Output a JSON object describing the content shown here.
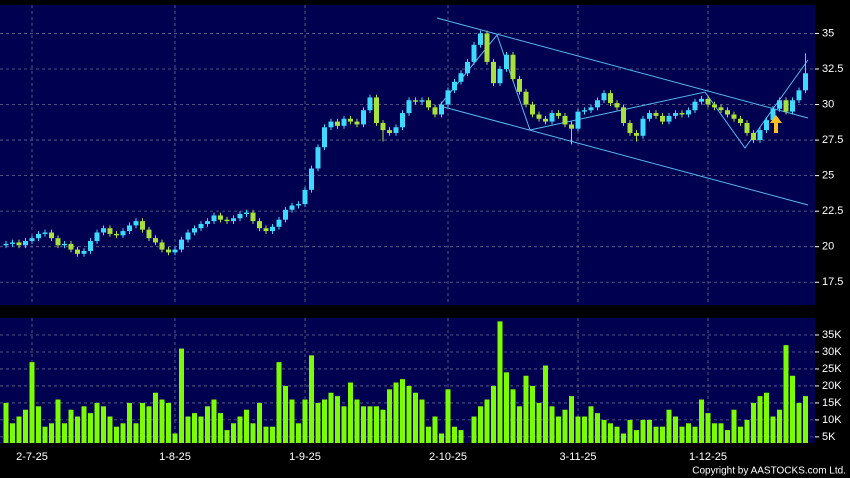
{
  "chart_data": [
    {
      "type": "candlestick",
      "up_color": "#3fd8ff",
      "down_color": "#a8e03c",
      "ylim": [
        15.9,
        37.0
      ],
      "yticks": [
        17.5,
        20,
        22.5,
        25,
        27.5,
        30,
        32.5,
        35
      ],
      "grid": true,
      "ohlc": [
        [
          20.1,
          20.4,
          19.9,
          20.2
        ],
        [
          20.2,
          20.5,
          20.0,
          20.3
        ],
        [
          20.3,
          20.5,
          19.9,
          20.1
        ],
        [
          20.1,
          20.6,
          19.9,
          20.4
        ],
        [
          20.4,
          20.8,
          20.2,
          20.6
        ],
        [
          20.6,
          21.1,
          20.4,
          20.9
        ],
        [
          20.9,
          21.2,
          20.7,
          21.0
        ],
        [
          21.0,
          21.2,
          20.4,
          20.6
        ],
        [
          20.6,
          20.8,
          19.9,
          20.1
        ],
        [
          20.1,
          20.4,
          19.9,
          20.2
        ],
        [
          20.2,
          20.4,
          19.6,
          19.8
        ],
        [
          19.8,
          20.0,
          19.3,
          19.5
        ],
        [
          19.5,
          19.9,
          19.3,
          19.7
        ],
        [
          19.7,
          20.6,
          19.5,
          20.4
        ],
        [
          20.4,
          21.2,
          20.2,
          21.0
        ],
        [
          21.0,
          21.5,
          20.8,
          21.3
        ],
        [
          21.3,
          21.5,
          20.7,
          20.9
        ],
        [
          20.9,
          21.1,
          20.6,
          20.8
        ],
        [
          20.8,
          21.3,
          20.6,
          21.1
        ],
        [
          21.1,
          21.7,
          20.9,
          21.5
        ],
        [
          21.5,
          22.0,
          21.3,
          21.8
        ],
        [
          21.8,
          22.0,
          21.0,
          21.2
        ],
        [
          21.2,
          21.4,
          20.4,
          20.6
        ],
        [
          20.6,
          20.8,
          20.1,
          20.3
        ],
        [
          20.3,
          20.5,
          19.6,
          19.8
        ],
        [
          19.8,
          20.0,
          19.4,
          19.6
        ],
        [
          19.6,
          20.0,
          19.4,
          19.8
        ],
        [
          19.8,
          20.7,
          19.6,
          20.5
        ],
        [
          20.5,
          21.2,
          20.3,
          21.0
        ],
        [
          21.0,
          21.5,
          20.8,
          21.3
        ],
        [
          21.3,
          21.8,
          21.1,
          21.6
        ],
        [
          21.6,
          22.0,
          21.4,
          21.8
        ],
        [
          21.8,
          22.4,
          21.6,
          22.2
        ],
        [
          22.2,
          22.4,
          21.7,
          21.9
        ],
        [
          21.9,
          22.1,
          21.6,
          21.8
        ],
        [
          21.8,
          22.2,
          21.6,
          22.0
        ],
        [
          22.0,
          22.5,
          21.8,
          22.3
        ],
        [
          22.3,
          22.6,
          22.1,
          22.4
        ],
        [
          22.4,
          22.6,
          21.6,
          21.8
        ],
        [
          21.8,
          22.0,
          21.1,
          21.3
        ],
        [
          21.3,
          21.5,
          20.9,
          21.1
        ],
        [
          21.1,
          21.6,
          20.9,
          21.4
        ],
        [
          21.4,
          22.1,
          21.2,
          21.9
        ],
        [
          21.9,
          22.8,
          21.7,
          22.6
        ],
        [
          22.6,
          23.1,
          22.4,
          22.9
        ],
        [
          22.9,
          23.2,
          22.7,
          23.0
        ],
        [
          23.0,
          24.2,
          22.8,
          24.0
        ],
        [
          24.0,
          25.7,
          23.8,
          25.5
        ],
        [
          25.5,
          27.2,
          25.3,
          27.0
        ],
        [
          27.0,
          28.6,
          26.8,
          28.4
        ],
        [
          28.4,
          29.0,
          28.2,
          28.8
        ],
        [
          28.8,
          29.0,
          28.3,
          28.5
        ],
        [
          28.5,
          29.2,
          28.3,
          29.0
        ],
        [
          29.0,
          29.2,
          28.6,
          28.8
        ],
        [
          28.8,
          29.0,
          28.4,
          28.6
        ],
        [
          28.6,
          29.8,
          28.4,
          29.6
        ],
        [
          29.6,
          30.7,
          29.4,
          30.5
        ],
        [
          30.5,
          30.7,
          28.5,
          28.7
        ],
        [
          28.7,
          28.9,
          27.4,
          28.2
        ],
        [
          28.2,
          28.4,
          27.8,
          28.0
        ],
        [
          28.0,
          28.6,
          27.8,
          28.4
        ],
        [
          28.4,
          29.6,
          28.2,
          29.4
        ],
        [
          29.4,
          30.5,
          29.2,
          30.3
        ],
        [
          30.3,
          30.5,
          30.0,
          30.2
        ],
        [
          30.2,
          30.5,
          30.0,
          30.3
        ],
        [
          30.3,
          30.5,
          29.6,
          29.8
        ],
        [
          29.8,
          30.0,
          29.1,
          29.3
        ],
        [
          29.3,
          30.2,
          29.1,
          30.0
        ],
        [
          30.0,
          31.2,
          29.8,
          31.0
        ],
        [
          31.0,
          31.8,
          30.8,
          31.6
        ],
        [
          31.6,
          32.4,
          31.4,
          32.2
        ],
        [
          32.2,
          33.2,
          32.0,
          33.0
        ],
        [
          33.0,
          34.4,
          32.8,
          34.2
        ],
        [
          34.2,
          35.2,
          34.0,
          35.0
        ],
        [
          35.0,
          35.2,
          32.8,
          33.0
        ],
        [
          33.0,
          33.2,
          31.3,
          31.5
        ],
        [
          31.5,
          32.7,
          31.3,
          32.5
        ],
        [
          32.5,
          33.7,
          32.3,
          33.5
        ],
        [
          33.5,
          33.7,
          31.6,
          31.8
        ],
        [
          31.8,
          32.0,
          30.7,
          30.9
        ],
        [
          30.9,
          31.1,
          29.8,
          30.0
        ],
        [
          30.0,
          30.2,
          29.1,
          29.3
        ],
        [
          29.3,
          29.5,
          28.8,
          29.0
        ],
        [
          29.0,
          29.2,
          28.6,
          28.8
        ],
        [
          28.8,
          29.6,
          28.6,
          29.4
        ],
        [
          29.4,
          29.6,
          29.0,
          29.2
        ],
        [
          29.2,
          29.4,
          28.4,
          28.6
        ],
        [
          28.6,
          28.8,
          27.2,
          28.3
        ],
        [
          28.3,
          29.7,
          28.1,
          29.5
        ],
        [
          29.5,
          29.8,
          29.3,
          29.6
        ],
        [
          29.6,
          30.0,
          29.4,
          29.8
        ],
        [
          29.8,
          30.5,
          29.6,
          30.3
        ],
        [
          30.3,
          31.0,
          30.1,
          30.8
        ],
        [
          30.8,
          31.0,
          29.9,
          30.1
        ],
        [
          30.1,
          30.3,
          29.6,
          29.8
        ],
        [
          29.8,
          30.0,
          28.5,
          28.7
        ],
        [
          28.7,
          28.9,
          27.8,
          28.0
        ],
        [
          28.0,
          28.2,
          27.4,
          27.8
        ],
        [
          27.8,
          29.2,
          27.6,
          29.0
        ],
        [
          29.0,
          29.6,
          28.8,
          29.4
        ],
        [
          29.4,
          29.6,
          29.0,
          29.2
        ],
        [
          29.2,
          29.4,
          28.6,
          28.8
        ],
        [
          28.8,
          29.4,
          28.6,
          29.2
        ],
        [
          29.2,
          29.6,
          29.0,
          29.4
        ],
        [
          29.4,
          29.6,
          29.1,
          29.3
        ],
        [
          29.3,
          29.8,
          29.1,
          29.6
        ],
        [
          29.6,
          30.4,
          29.4,
          30.2
        ],
        [
          30.2,
          30.6,
          30.0,
          30.4
        ],
        [
          30.4,
          30.6,
          29.8,
          30.0
        ],
        [
          30.0,
          30.2,
          29.6,
          29.8
        ],
        [
          29.8,
          30.0,
          29.4,
          29.6
        ],
        [
          29.6,
          29.8,
          29.1,
          29.3
        ],
        [
          29.3,
          29.5,
          28.8,
          29.0
        ],
        [
          29.0,
          29.2,
          28.5,
          28.7
        ],
        [
          28.7,
          28.9,
          27.8,
          28.0
        ],
        [
          28.0,
          28.2,
          27.3,
          27.5
        ],
        [
          27.5,
          28.4,
          27.3,
          28.2
        ],
        [
          28.2,
          29.1,
          28.0,
          28.9
        ],
        [
          28.9,
          29.9,
          28.7,
          29.7
        ],
        [
          29.7,
          30.5,
          29.5,
          30.3
        ],
        [
          30.3,
          30.5,
          29.3,
          29.5
        ],
        [
          29.5,
          30.5,
          29.3,
          30.3
        ],
        [
          30.3,
          31.2,
          30.1,
          31.0
        ],
        [
          31.0,
          33.6,
          30.8,
          32.2
        ]
      ]
    },
    {
      "type": "bar",
      "color": "#7cfc00",
      "ylim": [
        3200,
        40000
      ],
      "yticks": [
        {
          "value": 5000,
          "label": "5K"
        },
        {
          "value": 10000,
          "label": "10K"
        },
        {
          "value": 15000,
          "label": "15K"
        },
        {
          "value": 20000,
          "label": "20K"
        },
        {
          "value": 25000,
          "label": "25K"
        },
        {
          "value": 30000,
          "label": "30K"
        },
        {
          "value": 35000,
          "label": "35K"
        }
      ],
      "grid": true,
      "categories": [
        null,
        null,
        null,
        null,
        "2-7-25",
        null,
        null,
        null,
        null,
        null,
        null,
        null,
        null,
        null,
        null,
        null,
        null,
        null,
        null,
        null,
        null,
        null,
        null,
        null,
        null,
        null,
        "1-8-25",
        null,
        null,
        null,
        null,
        null,
        null,
        null,
        null,
        null,
        null,
        null,
        null,
        null,
        null,
        null,
        null,
        null,
        null,
        null,
        "1-9-25",
        null,
        null,
        null,
        null,
        null,
        null,
        null,
        null,
        null,
        null,
        null,
        null,
        null,
        null,
        null,
        null,
        null,
        null,
        null,
        null,
        null,
        "2-10-25",
        null,
        null,
        null,
        null,
        null,
        null,
        null,
        null,
        null,
        null,
        null,
        null,
        null,
        null,
        null,
        null,
        null,
        null,
        null,
        "3-11-25",
        null,
        null,
        null,
        null,
        null,
        null,
        null,
        null,
        null,
        null,
        null,
        null,
        null,
        null,
        null,
        null,
        null,
        null,
        null,
        "1-12-25",
        null,
        null,
        null,
        null,
        null,
        null,
        null,
        null,
        null,
        null,
        null,
        null,
        null,
        null,
        null
      ],
      "values": [
        15000,
        9000,
        11000,
        13000,
        27000,
        14000,
        8000,
        9000,
        16000,
        9000,
        13000,
        11000,
        14000,
        12000,
        15000,
        14000,
        11000,
        8000,
        9000,
        15000,
        9000,
        15000,
        14000,
        18000,
        16000,
        15000,
        6000,
        31000,
        11000,
        12000,
        11000,
        14000,
        16000,
        12000,
        7000,
        9000,
        11000,
        13000,
        9000,
        15000,
        8000,
        8000,
        27000,
        20000,
        16000,
        9000,
        16000,
        29000,
        15000,
        16000,
        18000,
        17000,
        14000,
        21000,
        16000,
        14000,
        14000,
        14000,
        13000,
        19000,
        21000,
        22000,
        20000,
        18000,
        16000,
        8000,
        11000,
        6000,
        19000,
        8000,
        7000,
        3000,
        11000,
        14000,
        16000,
        20000,
        39000,
        24000,
        19000,
        14000,
        23000,
        20000,
        15000,
        26000,
        14000,
        11000,
        13000,
        17000,
        11000,
        11000,
        14000,
        12000,
        10000,
        9000,
        8000,
        6000,
        10000,
        7000,
        10000,
        10000,
        8000,
        8000,
        13000,
        11000,
        8000,
        9000,
        8000,
        16000,
        12000,
        9000,
        9000,
        7000,
        13000,
        8000,
        10000,
        15000,
        17000,
        18000,
        11000,
        13000,
        32000,
        23000,
        15000,
        17000
      ]
    }
  ],
  "copyright": "Copyright by AASTOCKS.com Ltd."
}
